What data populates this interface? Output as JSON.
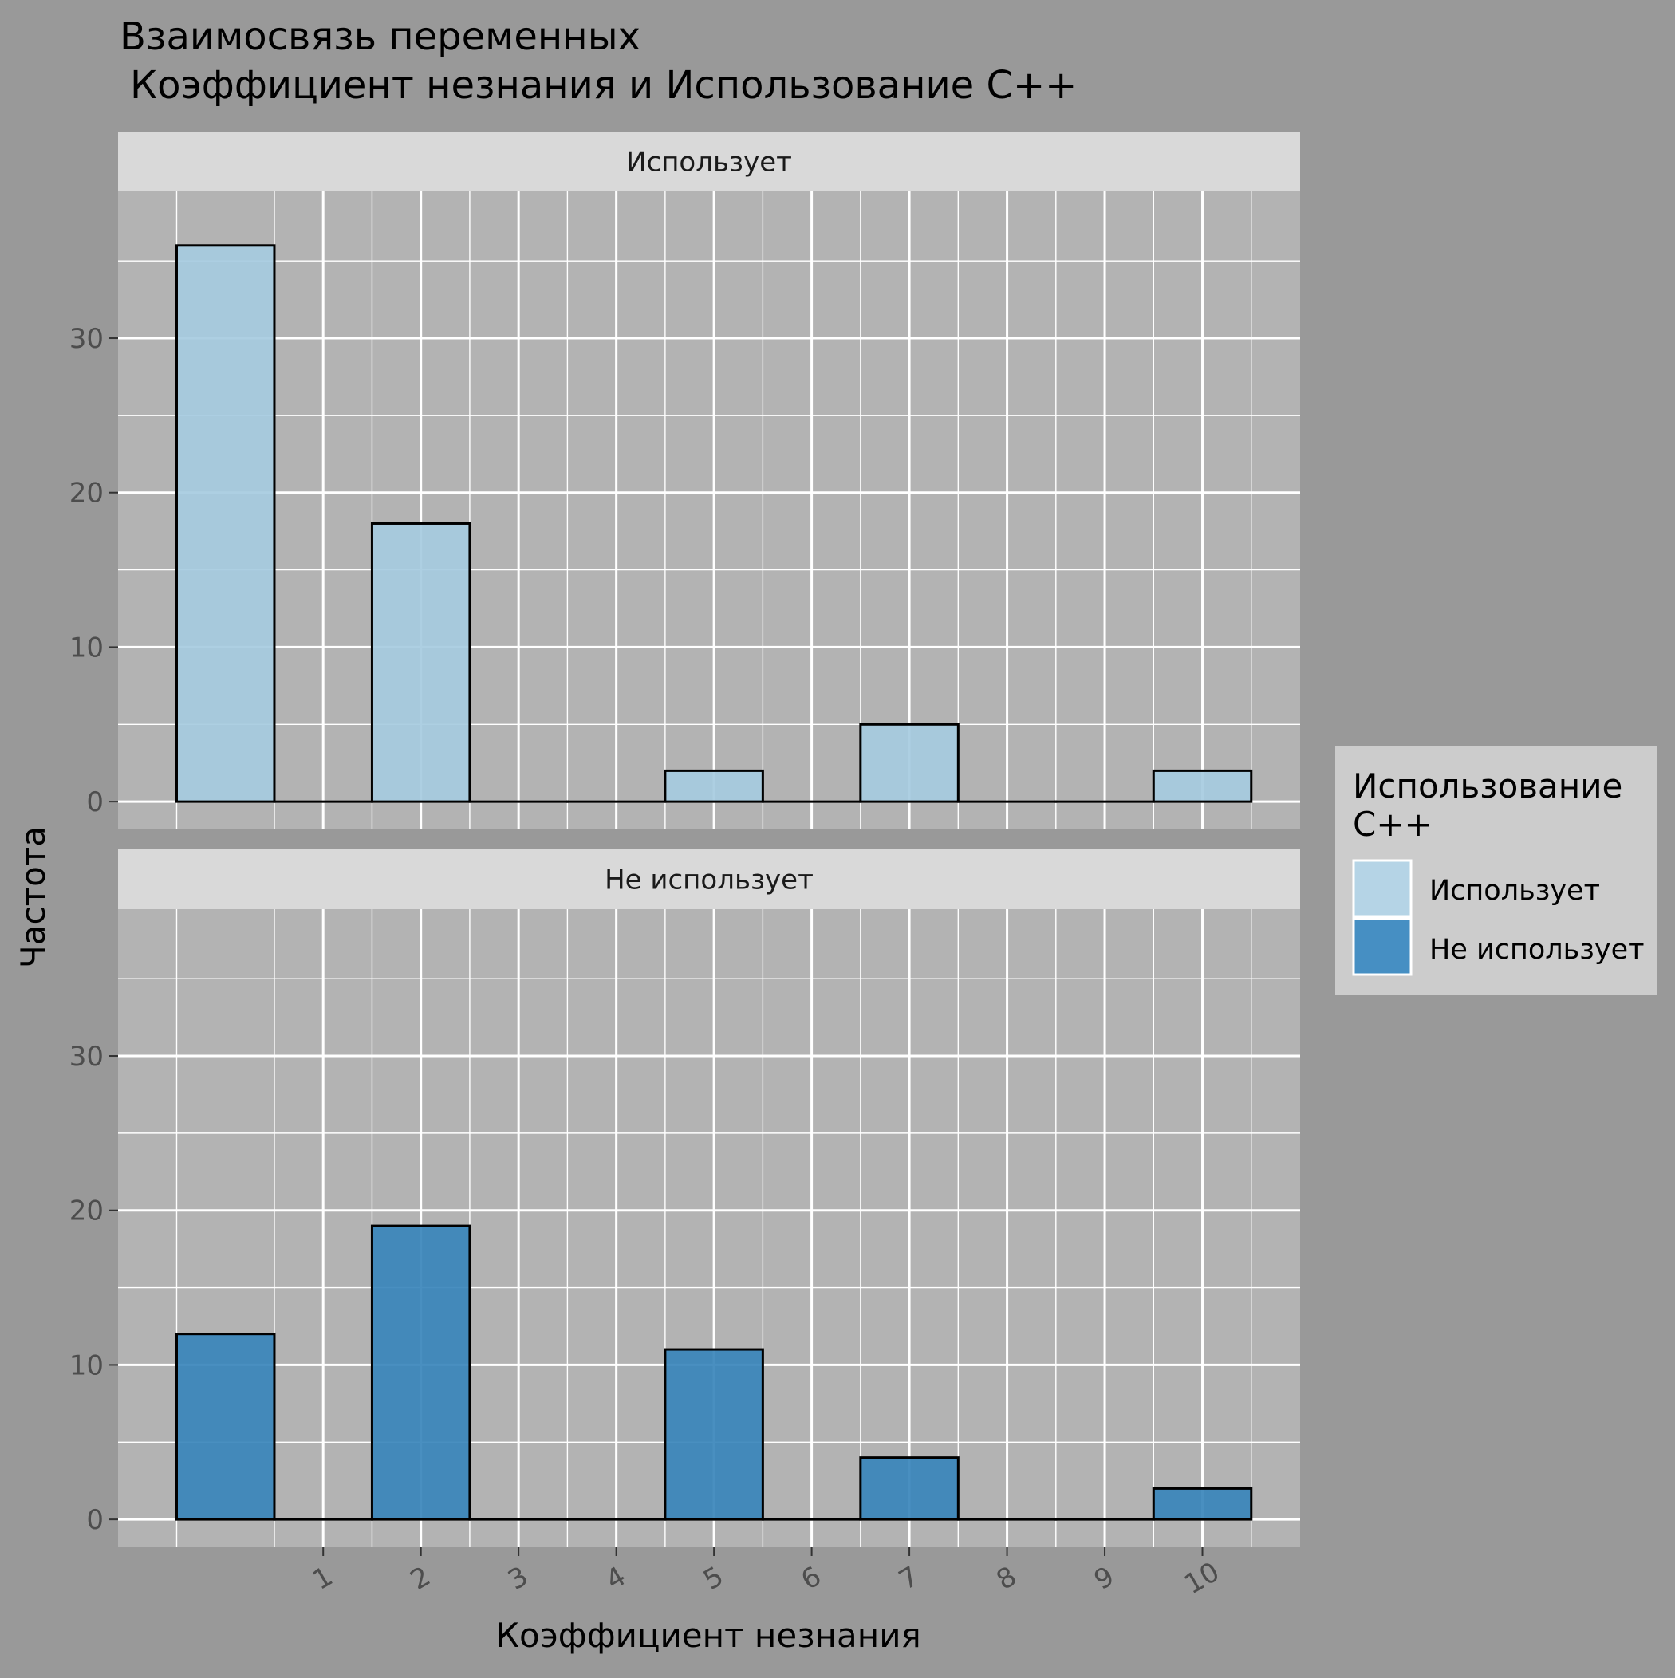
{
  "chart_data": {
    "type": "bar",
    "title_line1": "Взаимосвязь переменных",
    "title_line2": "Коэффициент незнания и Использование C++",
    "xlabel": "Коэффициент незнания",
    "ylabel": "Частота",
    "x_ticks": [
      1,
      2,
      3,
      4,
      5,
      6,
      7,
      8,
      9,
      10
    ],
    "x_range": [
      -1.1,
      11
    ],
    "y_ticks": [
      0,
      10,
      20,
      30
    ],
    "ylim": [
      -1.8,
      39.5
    ],
    "bar_width": 1,
    "grid": true,
    "facet_titles": [
      "Использует",
      "Не использует"
    ],
    "legend": {
      "title_line1": "Использование",
      "title_line2": "C++",
      "position": "right",
      "entries": [
        "Использует",
        "Не использует"
      ]
    },
    "colors": {
      "background": "#999999",
      "panel": "#b3b3b3",
      "strip": "#d9d9d9",
      "legend_bg": "#cccccc",
      "uses": "#a6cbe0",
      "not_uses": "#3a86bb",
      "uses_legend": "#b5d4e6",
      "not_uses_legend": "#468fc3",
      "grid": "#ffffff",
      "bar_outline": "#000000",
      "tick_label": "#4d4d4d"
    },
    "series": [
      {
        "name": "Использует",
        "x": [
          0,
          1,
          2,
          3,
          4,
          5,
          6,
          7,
          8,
          9,
          10
        ],
        "values": [
          36,
          0,
          18,
          0,
          0,
          2,
          0,
          5,
          0,
          0,
          2
        ]
      },
      {
        "name": "Не использует",
        "x": [
          0,
          1,
          2,
          3,
          4,
          5,
          6,
          7,
          8,
          9,
          10
        ],
        "values": [
          12,
          0,
          19,
          0,
          0,
          11,
          0,
          4,
          0,
          0,
          2
        ]
      }
    ]
  }
}
